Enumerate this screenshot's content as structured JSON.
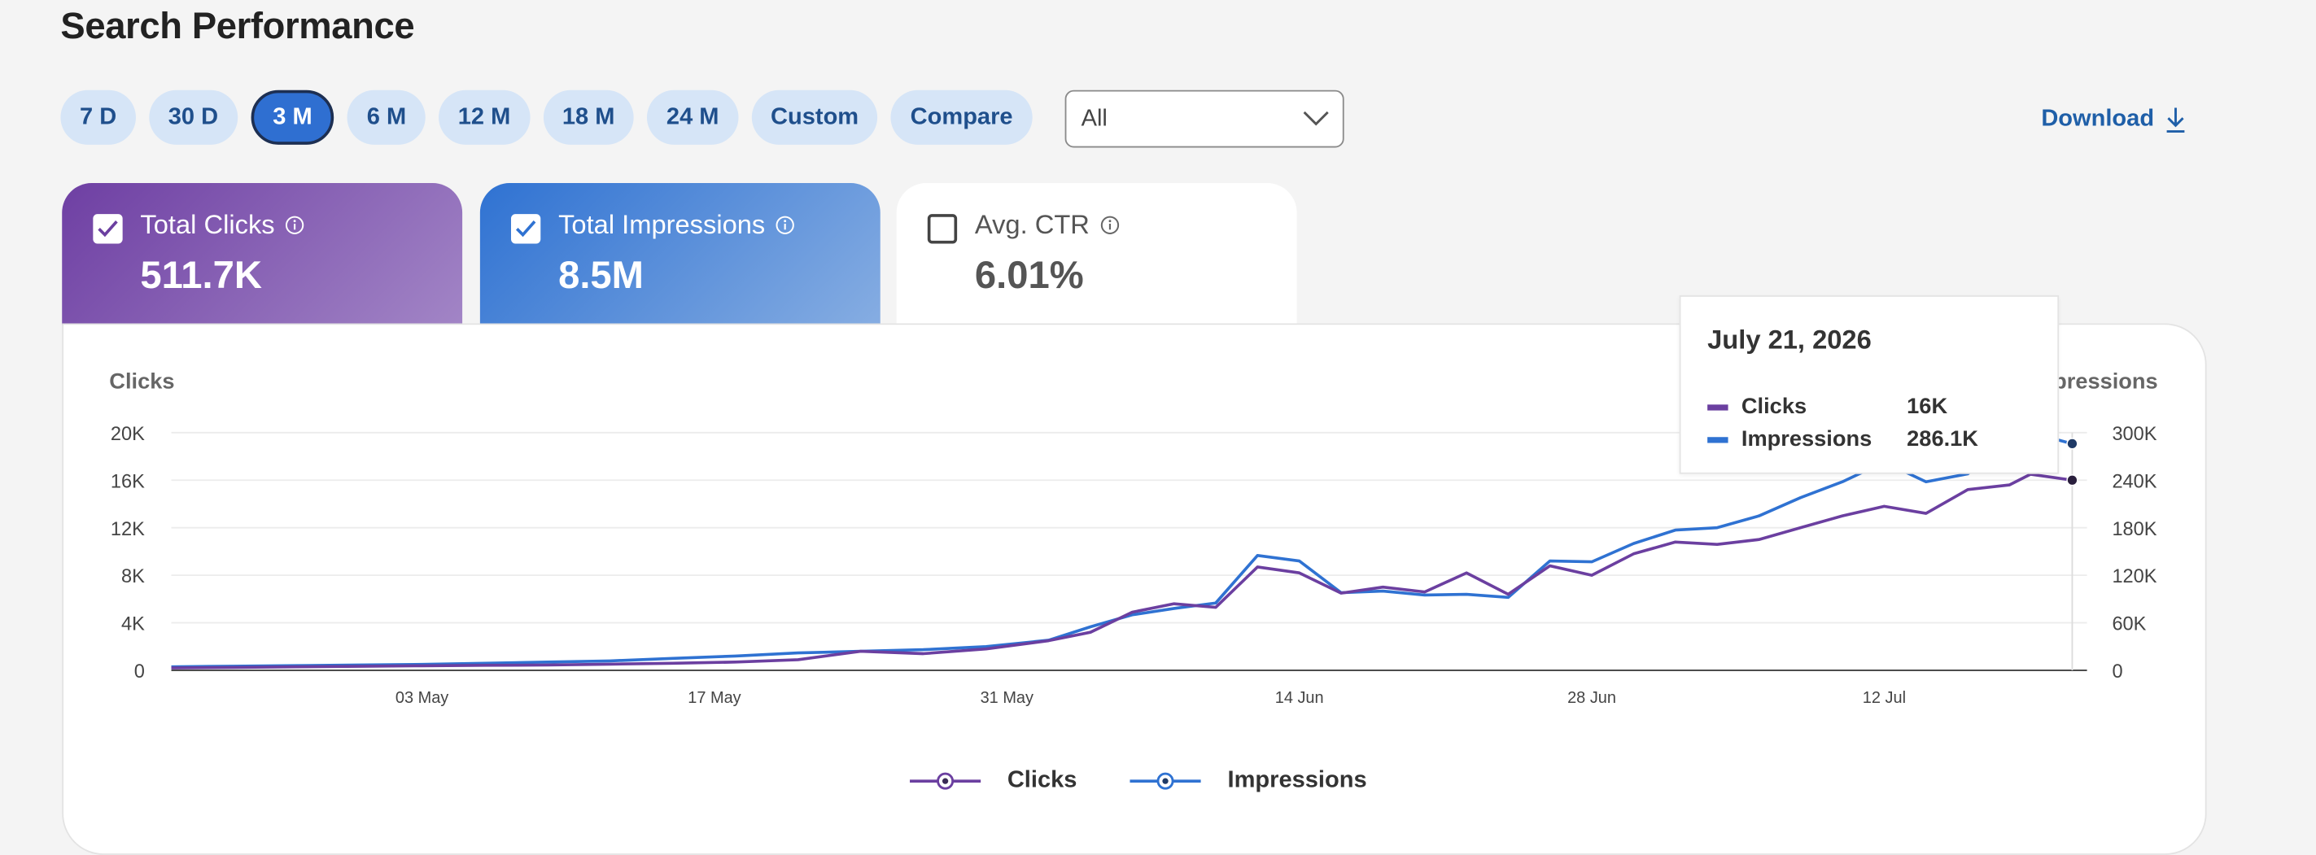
{
  "page": {
    "title": "Search Performance"
  },
  "ranges": [
    "7 D",
    "30 D",
    "3 M",
    "6 M",
    "12 M",
    "18 M",
    "24 M",
    "Custom",
    "Compare"
  ],
  "active_range": "3 M",
  "filter": {
    "selected": "All"
  },
  "download": {
    "label": "Download"
  },
  "metrics": {
    "clicks": {
      "label": "Total Clicks",
      "value": "511.7K",
      "checked": true
    },
    "impressions": {
      "label": "Total Impressions",
      "value": "8.5M",
      "checked": true
    },
    "ctr": {
      "label": "Avg. CTR",
      "value": "6.01%",
      "checked": false
    }
  },
  "colors": {
    "clicks": "#6b3fa0",
    "impressions": "#2f72d2",
    "accent": "#2f6fd1"
  },
  "icons": {
    "info": "info-icon",
    "download": "download-icon",
    "chevron": "chevron-down-icon",
    "check": "check-icon"
  },
  "tooltip": {
    "date": "July 21, 2026",
    "rows": [
      {
        "name": "Clicks",
        "value": "16K"
      },
      {
        "name": "Impressions",
        "value": "286.1K"
      }
    ]
  },
  "chart_data": {
    "type": "line",
    "ylabel_left": "Clicks",
    "ylabel_right": "Impressions",
    "y_left_ticks": [
      "0",
      "4K",
      "8K",
      "12K",
      "16K",
      "20K"
    ],
    "y_right_ticks": [
      "0",
      "60K",
      "120K",
      "180K",
      "240K",
      "300K"
    ],
    "ylim_left": [
      0,
      20000
    ],
    "ylim_right": [
      0,
      300000
    ],
    "x_tick_labels": [
      "03 May",
      "17 May",
      "31 May",
      "14 Jun",
      "28 Jun",
      "12 Jul"
    ],
    "x_start": "2026-04-21",
    "x_end": "2026-07-21",
    "grid": true,
    "legend_position": "bottom",
    "series": [
      {
        "name": "Clicks",
        "axis": "left",
        "values": [
          [
            "2026-04-21",
            200
          ],
          [
            "2026-04-24",
            250
          ],
          [
            "2026-04-27",
            300
          ],
          [
            "2026-04-30",
            330
          ],
          [
            "2026-05-03",
            380
          ],
          [
            "2026-05-06",
            420
          ],
          [
            "2026-05-09",
            450
          ],
          [
            "2026-05-12",
            520
          ],
          [
            "2026-05-15",
            600
          ],
          [
            "2026-05-18",
            700
          ],
          [
            "2026-05-21",
            900
          ],
          [
            "2026-05-24",
            1600
          ],
          [
            "2026-05-27",
            1400
          ],
          [
            "2026-05-30",
            1800
          ],
          [
            "2026-06-02",
            2500
          ],
          [
            "2026-06-04",
            3200
          ],
          [
            "2026-06-06",
            4900
          ],
          [
            "2026-06-08",
            5600
          ],
          [
            "2026-06-10",
            5300
          ],
          [
            "2026-06-12",
            8700
          ],
          [
            "2026-06-14",
            8200
          ],
          [
            "2026-06-16",
            6500
          ],
          [
            "2026-06-18",
            7000
          ],
          [
            "2026-06-20",
            6600
          ],
          [
            "2026-06-22",
            8200
          ],
          [
            "2026-06-24",
            6400
          ],
          [
            "2026-06-26",
            8800
          ],
          [
            "2026-06-28",
            8000
          ],
          [
            "2026-06-30",
            9800
          ],
          [
            "2026-07-02",
            10800
          ],
          [
            "2026-07-04",
            10600
          ],
          [
            "2026-07-06",
            11000
          ],
          [
            "2026-07-08",
            12000
          ],
          [
            "2026-07-10",
            13000
          ],
          [
            "2026-07-12",
            13800
          ],
          [
            "2026-07-14",
            13200
          ],
          [
            "2026-07-16",
            15200
          ],
          [
            "2026-07-18",
            15600
          ],
          [
            "2026-07-19",
            16500
          ],
          [
            "2026-07-21",
            16000
          ]
        ]
      },
      {
        "name": "Impressions",
        "axis": "right",
        "values": [
          [
            "2026-04-21",
            4500
          ],
          [
            "2026-04-24",
            5300
          ],
          [
            "2026-04-27",
            6000
          ],
          [
            "2026-04-30",
            6800
          ],
          [
            "2026-05-03",
            7500
          ],
          [
            "2026-05-06",
            9000
          ],
          [
            "2026-05-09",
            10500
          ],
          [
            "2026-05-12",
            12000
          ],
          [
            "2026-05-15",
            15000
          ],
          [
            "2026-05-18",
            18000
          ],
          [
            "2026-05-21",
            22000
          ],
          [
            "2026-05-24",
            24000
          ],
          [
            "2026-05-27",
            26000
          ],
          [
            "2026-05-30",
            30000
          ],
          [
            "2026-06-02",
            38000
          ],
          [
            "2026-06-04",
            55000
          ],
          [
            "2026-06-06",
            70000
          ],
          [
            "2026-06-08",
            78000
          ],
          [
            "2026-06-10",
            85000
          ],
          [
            "2026-06-12",
            145000
          ],
          [
            "2026-06-14",
            138000
          ],
          [
            "2026-06-16",
            98000
          ],
          [
            "2026-06-18",
            100000
          ],
          [
            "2026-06-20",
            95000
          ],
          [
            "2026-06-22",
            96000
          ],
          [
            "2026-06-24",
            92000
          ],
          [
            "2026-06-26",
            138000
          ],
          [
            "2026-06-28",
            137000
          ],
          [
            "2026-06-30",
            160000
          ],
          [
            "2026-07-02",
            177000
          ],
          [
            "2026-07-04",
            180000
          ],
          [
            "2026-07-06",
            195000
          ],
          [
            "2026-07-08",
            218000
          ],
          [
            "2026-07-10",
            238000
          ],
          [
            "2026-07-12",
            263000
          ],
          [
            "2026-07-14",
            238000
          ],
          [
            "2026-07-16",
            248000
          ],
          [
            "2026-07-18",
            292000
          ],
          [
            "2026-07-19",
            300000
          ],
          [
            "2026-07-21",
            286100
          ]
        ]
      }
    ]
  }
}
